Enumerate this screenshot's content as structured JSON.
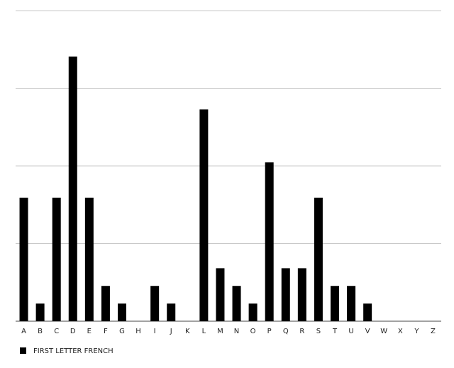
{
  "chart_data": {
    "type": "bar",
    "categories": [
      "A",
      "B",
      "C",
      "D",
      "E",
      "F",
      "G",
      "H",
      "I",
      "J",
      "K",
      "L",
      "M",
      "N",
      "O",
      "P",
      "Q",
      "R",
      "S",
      "T",
      "U",
      "V",
      "W",
      "X",
      "Y",
      "Z"
    ],
    "series": [
      {
        "name": "FIRST LETTER FRENCH",
        "color": "#000000",
        "values": [
          7,
          1,
          7,
          15,
          7,
          2,
          1,
          0,
          2,
          1,
          0,
          12,
          3,
          2,
          1,
          9,
          3,
          3,
          7,
          2,
          2,
          1,
          0,
          0,
          0,
          0
        ]
      }
    ],
    "ylim": [
      0,
      17.6
    ],
    "yticks": [
      0,
      4.4,
      8.8,
      13.2,
      17.6
    ],
    "grid": true,
    "legend": "bottom-left"
  }
}
